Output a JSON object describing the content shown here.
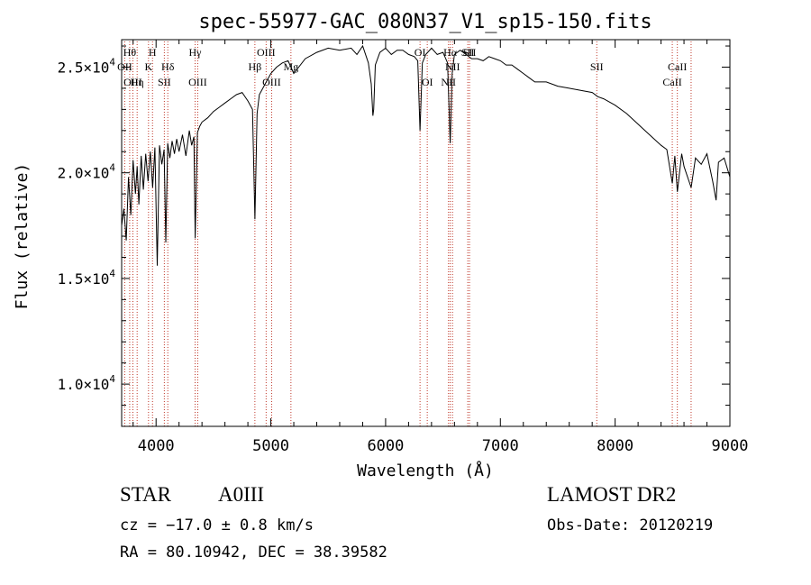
{
  "chart_data": {
    "type": "line",
    "title": "spec-55977-GAC_080N37_V1_sp15-150.fits",
    "xlabel": "Wavelength (Å)",
    "ylabel": "Flux (relative)",
    "xlim": [
      3700,
      9000
    ],
    "ylim": [
      8000,
      26300
    ],
    "x_ticks": [
      4000,
      5000,
      6000,
      7000,
      8000,
      9000
    ],
    "x_tick_labels": [
      "4000",
      "5000",
      "6000",
      "7000",
      "8000",
      "9000"
    ],
    "y_ticks": [
      10000,
      15000,
      20000,
      25000
    ],
    "y_tick_labels": [
      {
        "mantissa": "1.0",
        "exp": "4"
      },
      {
        "mantissa": "1.5",
        "exp": "4"
      },
      {
        "mantissa": "2.0",
        "exp": "4"
      },
      {
        "mantissa": "2.5",
        "exp": "4"
      }
    ],
    "grid": false,
    "series": [
      {
        "color": "#000000",
        "x": [
          3700,
          3720,
          3740,
          3760,
          3780,
          3800,
          3820,
          3835,
          3850,
          3870,
          3889,
          3910,
          3930,
          3950,
          3970,
          3990,
          4010,
          4030,
          4050,
          4070,
          4085,
          4101,
          4120,
          4140,
          4160,
          4180,
          4200,
          4230,
          4260,
          4290,
          4310,
          4330,
          4341,
          4360,
          4380,
          4400,
          4450,
          4500,
          4550,
          4600,
          4650,
          4700,
          4750,
          4800,
          4840,
          4861,
          4880,
          4900,
          4950,
          5000,
          5050,
          5100,
          5150,
          5200,
          5300,
          5400,
          5500,
          5600,
          5700,
          5750,
          5800,
          5850,
          5875,
          5889,
          5896,
          5910,
          5950,
          6000,
          6050,
          6100,
          6150,
          6200,
          6250,
          6280,
          6300,
          6320,
          6350,
          6400,
          6450,
          6500,
          6540,
          6563,
          6580,
          6600,
          6650,
          6700,
          6750,
          6800,
          6850,
          6900,
          6950,
          7000,
          7050,
          7100,
          7150,
          7200,
          7250,
          7300,
          7400,
          7500,
          7600,
          7700,
          7800,
          7850,
          7900,
          8000,
          8100,
          8200,
          8300,
          8400,
          8450,
          8498,
          8520,
          8542,
          8580,
          8600,
          8662,
          8700,
          8750,
          8800,
          8850,
          8880,
          8900,
          8950,
          9000
        ],
        "y": [
          17500,
          18300,
          16800,
          19800,
          18000,
          20600,
          19000,
          20300,
          18500,
          20800,
          19200,
          20900,
          19600,
          21000,
          19300,
          21200,
          15600,
          21300,
          20400,
          21100,
          16700,
          21400,
          20700,
          21500,
          20900,
          21600,
          21000,
          21800,
          20800,
          22000,
          21300,
          21700,
          16900,
          21900,
          22200,
          22400,
          22600,
          22900,
          23100,
          23300,
          23500,
          23700,
          23800,
          23400,
          23000,
          17800,
          22800,
          23700,
          24200,
          24700,
          25000,
          25200,
          25300,
          24700,
          25400,
          25700,
          25900,
          25800,
          25900,
          25600,
          26000,
          25200,
          24200,
          22700,
          23000,
          25100,
          25700,
          25900,
          25600,
          25800,
          25800,
          25600,
          25500,
          25300,
          22000,
          25200,
          25600,
          25900,
          25600,
          25700,
          25200,
          21400,
          24700,
          25600,
          25800,
          25600,
          25400,
          25400,
          25300,
          25500,
          25400,
          25300,
          25100,
          25100,
          24900,
          24700,
          24500,
          24300,
          24300,
          24100,
          24000,
          23900,
          23800,
          23600,
          23500,
          23200,
          22800,
          22300,
          21800,
          21300,
          21100,
          19500,
          20800,
          19100,
          20900,
          20300,
          19300,
          20700,
          20400,
          20900,
          19600,
          18700,
          20500,
          20700,
          19800
        ]
      }
    ],
    "lines": [
      {
        "wl": 3727,
        "label": "OII",
        "pos": "m2"
      },
      {
        "wl": 3770,
        "label": "Hθ",
        "pos": "t1"
      },
      {
        "wl": 3798,
        "label": "OIII",
        "pos": "b1"
      },
      {
        "wl": 3835,
        "label": "Hη",
        "pos": "b1"
      },
      {
        "wl": 3934,
        "label": "K",
        "pos": "m2"
      },
      {
        "wl": 3969,
        "label": "H",
        "pos": "t1"
      },
      {
        "wl": 4072,
        "label": "SII",
        "pos": "b1"
      },
      {
        "wl": 4102,
        "label": "Hδ",
        "pos": "m2"
      },
      {
        "wl": 4340,
        "label": "Hγ",
        "pos": "t1"
      },
      {
        "wl": 4363,
        "label": "OIII",
        "pos": "b1"
      },
      {
        "wl": 4861,
        "label": "Hβ",
        "pos": "m2"
      },
      {
        "wl": 4959,
        "label": "OIII",
        "pos": "t1"
      },
      {
        "wl": 5007,
        "label": "OIII",
        "pos": "b1"
      },
      {
        "wl": 5175,
        "label": "Mg",
        "pos": "m2"
      },
      {
        "wl": 6300,
        "label": "OI",
        "pos": "t1"
      },
      {
        "wl": 6363,
        "label": "OI",
        "pos": "b1"
      },
      {
        "wl": 6548,
        "label": "NII",
        "pos": "b1"
      },
      {
        "wl": 6563,
        "label": "Hα",
        "pos": "t1"
      },
      {
        "wl": 6583,
        "label": "NII",
        "pos": "m2"
      },
      {
        "wl": 6716,
        "label": "SII",
        "pos": "t1"
      },
      {
        "wl": 6731,
        "label": "SII",
        "pos": "t1"
      },
      {
        "wl": 7840,
        "label": "SII",
        "pos": "m2"
      },
      {
        "wl": 8498,
        "label": "CaII",
        "pos": "b1"
      },
      {
        "wl": 8542,
        "label": "CaII",
        "pos": "m2"
      },
      {
        "wl": 8662,
        "label": "",
        "pos": "none"
      }
    ]
  },
  "info": {
    "class": "STAR",
    "subclass": "A0III",
    "survey": "LAMOST DR2",
    "cz": "cz = −17.0 ± 0.8 km/s",
    "obs_date": "Obs-Date: 20120219",
    "coords": "RA =  80.10942, DEC =  38.39582"
  }
}
